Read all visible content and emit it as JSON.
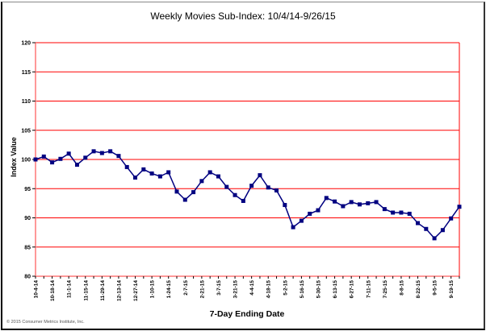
{
  "chart_data": {
    "type": "line",
    "title": "Weekly Movies Sub-Index: 10/4/14-9/26/15",
    "xlabel": "7-Day Ending Date",
    "ylabel": "Index Value",
    "ylim": [
      80,
      120
    ],
    "yticks": [
      80,
      85,
      90,
      95,
      100,
      105,
      110,
      115,
      120
    ],
    "grid": true,
    "legend": null,
    "tick_labels": [
      "10-4-14",
      "10-18-14",
      "11-1-14",
      "11-15-14",
      "11-29-14",
      "12-13-14",
      "12-27-14",
      "1-10-15",
      "1-24-15",
      "2-7-15",
      "2-21-15",
      "3-7-15",
      "3-21-15",
      "4-4-15",
      "4-18-15",
      "5-2-15",
      "5-16-15",
      "5-30-15",
      "6-13-15",
      "6-27-15",
      "7-11-15",
      "7-25-15",
      "8-8-15",
      "8-22-15",
      "9-5-15",
      "9-19-15"
    ],
    "x": [
      "10-4-14",
      "10-11-14",
      "10-18-14",
      "10-25-14",
      "11-1-14",
      "11-8-14",
      "11-15-14",
      "11-22-14",
      "11-29-14",
      "12-6-14",
      "12-13-14",
      "12-20-14",
      "12-27-14",
      "1-3-15",
      "1-10-15",
      "1-17-15",
      "1-24-15",
      "1-31-15",
      "2-7-15",
      "2-14-15",
      "2-21-15",
      "2-28-15",
      "3-7-15",
      "3-14-15",
      "3-21-15",
      "3-28-15",
      "4-4-15",
      "4-11-15",
      "4-18-15",
      "4-25-15",
      "5-2-15",
      "5-9-15",
      "5-16-15",
      "5-23-15",
      "5-30-15",
      "6-6-15",
      "6-13-15",
      "6-20-15",
      "6-27-15",
      "7-4-15",
      "7-11-15",
      "7-18-15",
      "7-25-15",
      "8-1-15",
      "8-8-15",
      "8-15-15",
      "8-22-15",
      "8-29-15",
      "9-5-15",
      "9-12-15",
      "9-19-15",
      "9-26-15"
    ],
    "series": [
      {
        "name": "Weekly Movies Sub-Index",
        "color": "#000080",
        "values": [
          100.0,
          100.5,
          99.5,
          100.1,
          101.0,
          99.1,
          100.3,
          101.4,
          101.1,
          101.4,
          100.6,
          98.7,
          96.9,
          98.3,
          97.6,
          97.1,
          97.8,
          94.5,
          93.1,
          94.4,
          96.3,
          97.8,
          97.1,
          95.3,
          93.9,
          92.9,
          95.5,
          97.3,
          95.2,
          94.7,
          92.2,
          88.4,
          89.5,
          90.7,
          91.3,
          93.4,
          92.8,
          92.0,
          92.7,
          92.3,
          92.5,
          92.7,
          91.5,
          90.9,
          90.9,
          90.7,
          89.1,
          88.1,
          86.5,
          87.9,
          89.9,
          91.9
        ]
      }
    ]
  },
  "colors": {
    "gridline": "#ff0000",
    "axis": "#ff9999",
    "line": "#000080"
  },
  "footer": {
    "copyright": "© 2015 Consumer Metrics Institute, Inc."
  }
}
